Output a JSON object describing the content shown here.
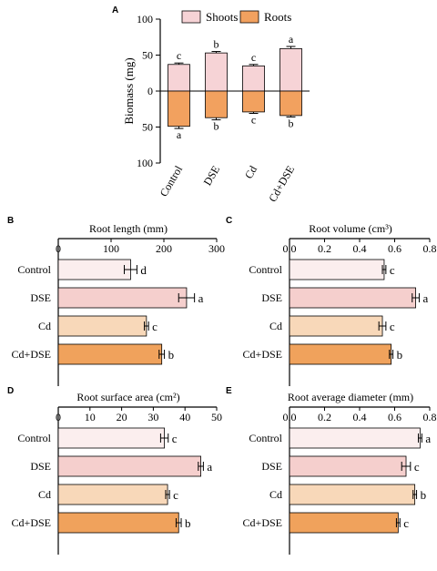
{
  "chart_data": [
    {
      "panel": "A",
      "type": "bar",
      "ylabel": "Biomass (mg)",
      "yticks": [
        100,
        50,
        0,
        50,
        100
      ],
      "ylim": [
        -100,
        100
      ],
      "categories": [
        "Control",
        "DSE",
        "Cd",
        "Cd+DSE"
      ],
      "legend": [
        "Shoots",
        "Roots"
      ],
      "legend_position": "top",
      "series": [
        {
          "name": "Shoots",
          "color": "#f6d3d6",
          "values": [
            37,
            53,
            35,
            59
          ],
          "errors": [
            2,
            2,
            2,
            3
          ],
          "letters": [
            "c",
            "b",
            "c",
            "a"
          ]
        },
        {
          "name": "Roots",
          "color": "#f2a15f",
          "values": [
            -49,
            -37,
            -29,
            -34
          ],
          "errors": [
            3,
            3,
            2,
            2
          ],
          "letters": [
            "a",
            "b",
            "c",
            "b"
          ]
        }
      ]
    },
    {
      "panel": "B",
      "type": "bar",
      "orientation": "horizontal",
      "xlabel": "Root length (mm)",
      "xlim": [
        0,
        300
      ],
      "xticks": [
        "0",
        "100",
        "200",
        "300"
      ],
      "categories": [
        "Control",
        "DSE",
        "Cd",
        "Cd+DSE"
      ],
      "values": [
        137,
        243,
        167,
        196
      ],
      "errors": [
        12,
        15,
        4,
        5
      ],
      "letters": [
        "d",
        "a",
        "c",
        "b"
      ]
    },
    {
      "panel": "C",
      "type": "bar",
      "orientation": "horizontal",
      "xlabel": "Root volume (cm³)",
      "xlim": [
        0,
        0.8
      ],
      "xticks": [
        "0.0",
        "0.2",
        "0.4",
        "0.6",
        "0.8"
      ],
      "categories": [
        "Control",
        "DSE",
        "Cd",
        "Cd+DSE"
      ],
      "values": [
        0.54,
        0.72,
        0.53,
        0.58
      ],
      "errors": [
        0.01,
        0.02,
        0.02,
        0.01
      ],
      "letters": [
        "c",
        "a",
        "c",
        "b"
      ]
    },
    {
      "panel": "D",
      "type": "bar",
      "orientation": "horizontal",
      "xlabel": "Root surface area (cm²)",
      "xlim": [
        0,
        50
      ],
      "xticks": [
        "0",
        "10",
        "20",
        "30",
        "40",
        "50"
      ],
      "categories": [
        "Control",
        "DSE",
        "Cd",
        "Cd+DSE"
      ],
      "values": [
        33.5,
        45,
        34.5,
        38
      ],
      "errors": [
        1.2,
        0.8,
        0.6,
        0.8
      ],
      "letters": [
        "c",
        "a",
        "c",
        "b"
      ]
    },
    {
      "panel": "E",
      "type": "bar",
      "orientation": "horizontal",
      "xlabel": "Root average diameter (mm)",
      "xlim": [
        0,
        0.8
      ],
      "xticks": [
        "0.0",
        "0.2",
        "0.4",
        "0.6",
        "0.8"
      ],
      "categories": [
        "Control",
        "DSE",
        "Cd",
        "Cd+DSE"
      ],
      "values": [
        0.745,
        0.665,
        0.715,
        0.62
      ],
      "errors": [
        0.01,
        0.025,
        0.01,
        0.01
      ],
      "letters": [
        "a",
        "c",
        "b",
        "c"
      ]
    }
  ],
  "horizontal_bar_colors": [
    "#fbeeee",
    "#f5cfcd",
    "#f8d8b9",
    "#f0a25c"
  ]
}
